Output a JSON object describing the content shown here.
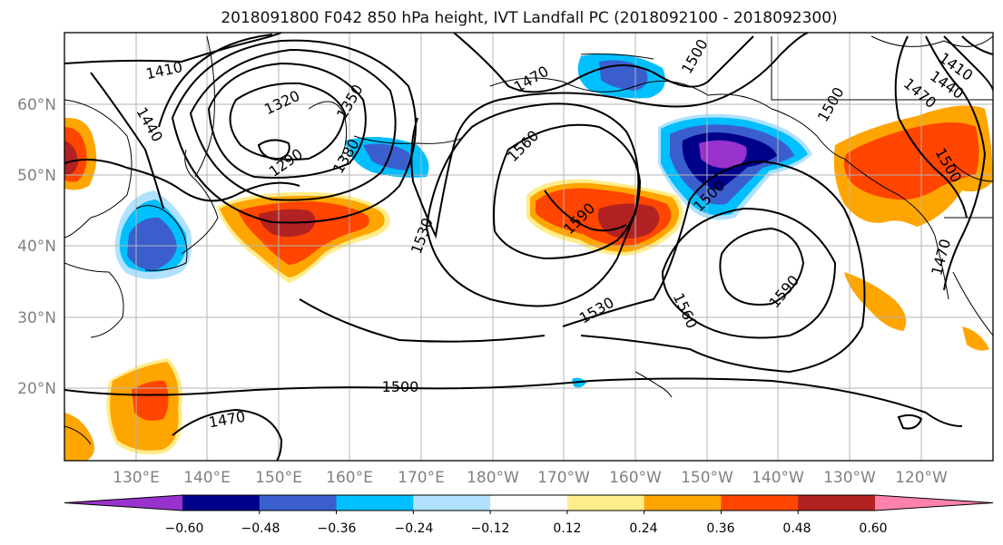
{
  "map": {
    "title": "2018091800 F042 850 hPa height, IVT Landfall PC (2018092100 - 2018092300)",
    "lat_labels": [
      "60°N",
      "50°N",
      "40°N",
      "30°N",
      "20°N"
    ],
    "lon_labels": [
      "130°E",
      "140°E",
      "150°E",
      "160°E",
      "170°E",
      "180°W",
      "170°W",
      "160°W",
      "150°W",
      "140°W",
      "130°W",
      "120°W"
    ],
    "contour_labels": [
      "1410",
      "1440",
      "1320",
      "1350",
      "1290",
      "1380",
      "1470",
      "1500",
      "1560",
      "1530",
      "1590",
      "1500",
      "1560",
      "1590",
      "1530",
      "1500",
      "1470",
      "1500",
      "1410",
      "1440",
      "1470",
      "1470",
      "1500"
    ],
    "colorbar": {
      "ticks": [
        "−0.60",
        "−0.48",
        "−0.36",
        "−0.24",
        "−0.12",
        "0.12",
        "0.24",
        "0.36",
        "0.48",
        "0.60"
      ],
      "colors": [
        "#9932cc",
        "#00008b",
        "#3a5fcd",
        "#00bfff",
        "#b0e2ff",
        "#ffffff",
        "#ffec8b",
        "#ffa500",
        "#ff4500",
        "#b22222",
        "#ff82ab"
      ]
    },
    "palette": {
      "neg_strong": "#9932cc",
      "neg_dark": "#00008b",
      "neg_mid": "#3a5fcd",
      "neg_light": "#00bfff",
      "neg_pale": "#b0e2ff",
      "pos_pale": "#ffec8b",
      "pos_light": "#ffa500",
      "pos_mid": "#ff4500",
      "pos_dark": "#b22222",
      "pos_strong": "#ff82ab"
    }
  }
}
